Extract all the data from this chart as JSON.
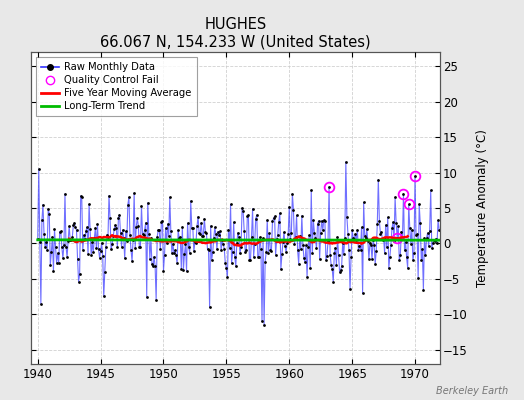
{
  "title": "HUGHES",
  "subtitle": "66.067 N, 154.233 W (United States)",
  "ylabel": "Temperature Anomaly (°C)",
  "watermark": "Berkeley Earth",
  "ylim": [
    -17,
    27
  ],
  "yticks": [
    -15,
    -10,
    -5,
    0,
    5,
    10,
    15,
    20,
    25
  ],
  "xlim": [
    1939.5,
    1972.0
  ],
  "xticks": [
    1940,
    1945,
    1950,
    1955,
    1960,
    1965,
    1970
  ],
  "line_color": "#3333ff",
  "line_alpha": 0.7,
  "moving_avg_color": "#ff0000",
  "trend_color": "#00bb00",
  "qc_color": "#ff00ff",
  "dot_color": "#000000",
  "background_color": "#e8e8e8",
  "plot_bg_color": "#ffffff",
  "grid_color": "#cccccc",
  "seed": 17
}
